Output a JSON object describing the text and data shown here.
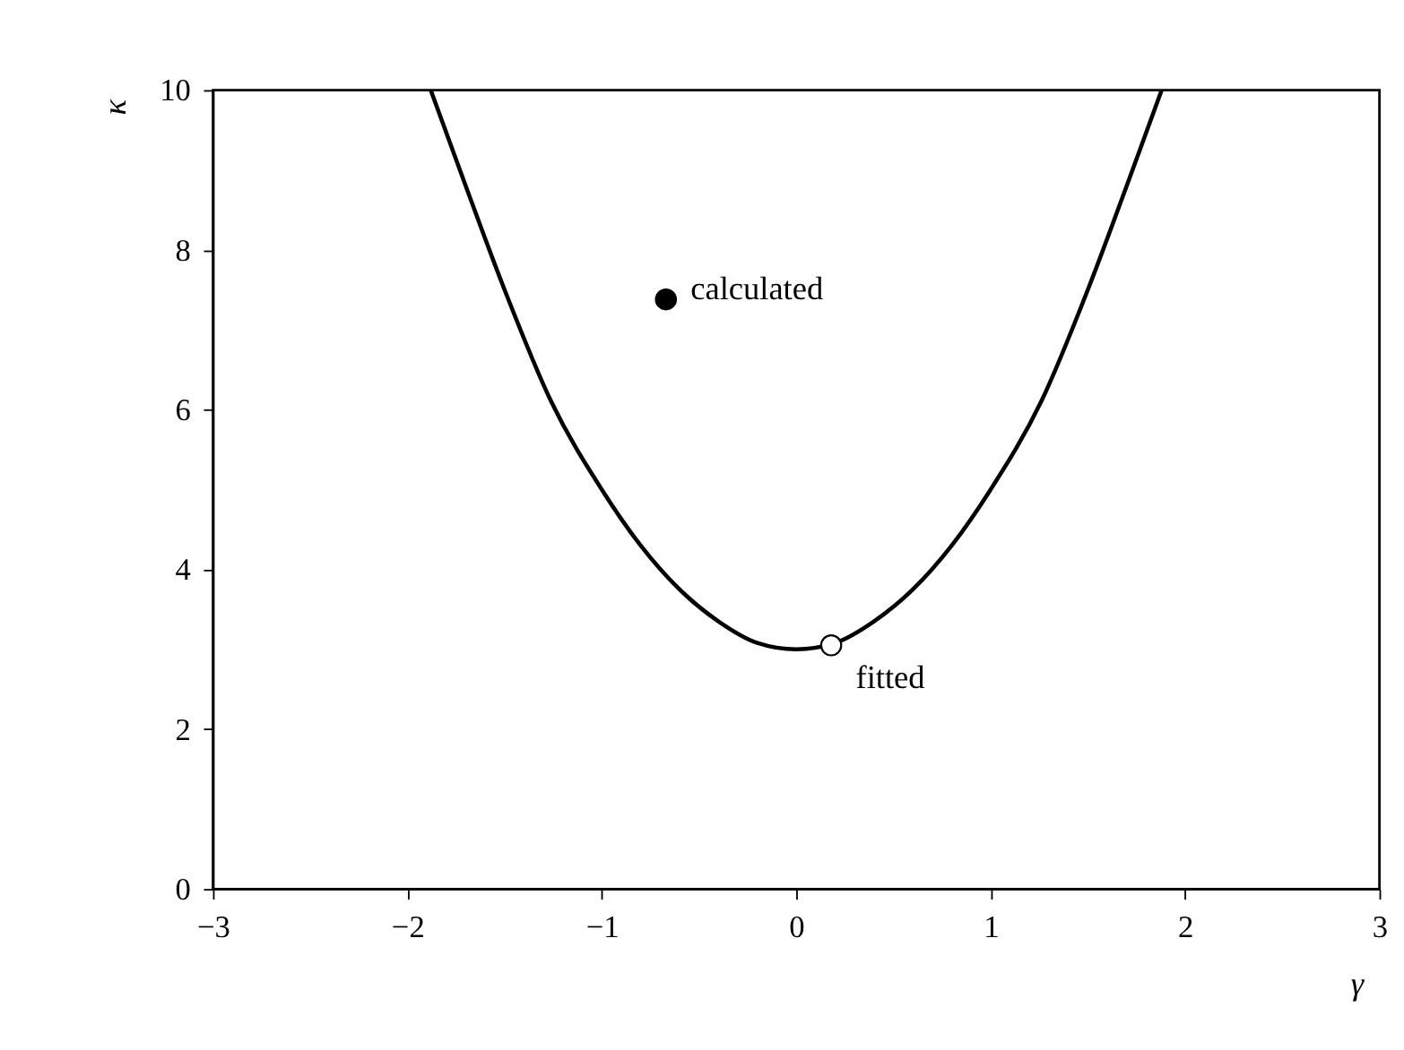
{
  "chart_data": {
    "type": "line",
    "xlabel": "γ",
    "ylabel": "κ",
    "xlim": [
      -3,
      3
    ],
    "ylim": [
      0,
      10
    ],
    "xticks": [
      {
        "value": -3,
        "label": "−3"
      },
      {
        "value": -2,
        "label": "−2"
      },
      {
        "value": -1,
        "label": "−1"
      },
      0,
      1,
      2,
      3
    ],
    "yticks": [
      0,
      2,
      4,
      6,
      8,
      10
    ],
    "grid": false,
    "series": [
      {
        "color": "#000000",
        "marker": "none",
        "line_style": "solid",
        "x": [
          -1.88,
          -1.7,
          -1.5,
          -1.26,
          -1.0,
          -0.8,
          -0.6,
          -0.4,
          -0.2,
          0,
          0.2,
          0.4,
          0.6,
          0.8,
          1.0,
          1.26,
          1.5,
          1.7,
          1.88
        ],
        "values": [
          10,
          8.8,
          7.5,
          6.1,
          5.0,
          4.3,
          3.75,
          3.35,
          3.08,
          3.0,
          3.08,
          3.35,
          3.75,
          4.3,
          5.0,
          6.1,
          7.5,
          8.8,
          10
        ]
      },
      {
        "type": "scatter",
        "color": "#000000",
        "marker": "circle",
        "x": [
          -0.67
        ],
        "values": [
          7.38
        ]
      },
      {
        "type": "scatter",
        "color": "#ffffff",
        "marker": "circle",
        "x": [
          0.18
        ],
        "values": [
          3.05
        ]
      }
    ],
    "annotations": [
      {
        "text": "calculated",
        "x": -0.67,
        "y": 7.38
      },
      {
        "text": "fitted",
        "x": 0.18,
        "y": 3.05
      }
    ]
  }
}
